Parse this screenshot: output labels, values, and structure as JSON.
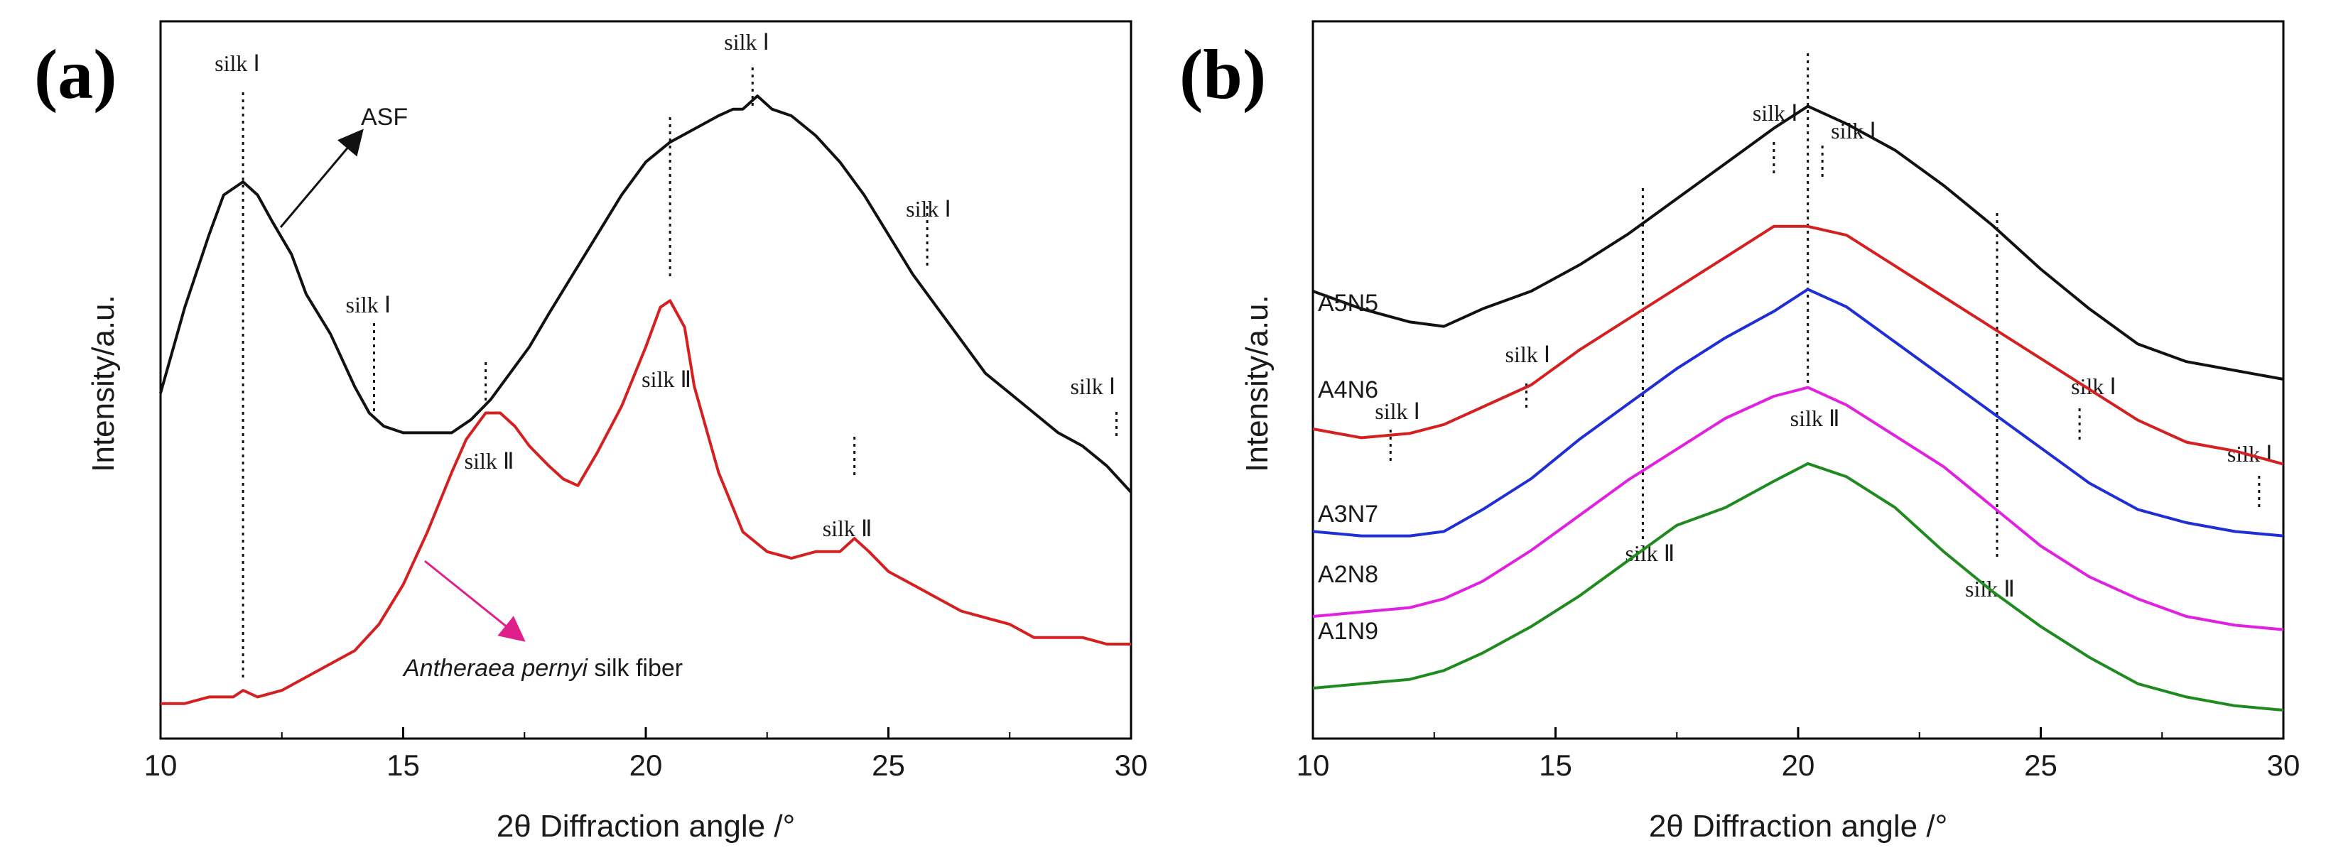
{
  "chart_data": [
    {
      "panel": "(a)",
      "type": "line",
      "xlabel": "2θ Diffraction angle /°",
      "ylabel": "Intensity/a.u.",
      "xlim": [
        10,
        30
      ],
      "xticks": [
        10,
        15,
        20,
        25,
        30
      ],
      "y_units": "arbitrary",
      "grid": false,
      "series": [
        {
          "name": "ASF",
          "color": "#111111",
          "x": [
            10,
            10.5,
            11,
            11.3,
            11.7,
            12,
            12.3,
            12.7,
            13,
            13.5,
            14,
            14.3,
            14.6,
            15,
            15.5,
            16,
            16.4,
            16.8,
            17.2,
            17.6,
            18,
            18.5,
            19,
            19.5,
            20,
            20.5,
            21,
            21.5,
            21.8,
            22,
            22.3,
            22.6,
            23,
            23.5,
            24,
            24.5,
            25,
            25.5,
            26,
            26.5,
            27,
            27.5,
            28,
            28.5,
            29,
            29.5,
            30
          ],
          "values": [
            0.48,
            0.61,
            0.72,
            0.78,
            0.8,
            0.78,
            0.74,
            0.69,
            0.63,
            0.57,
            0.49,
            0.45,
            0.43,
            0.42,
            0.42,
            0.42,
            0.44,
            0.47,
            0.51,
            0.55,
            0.6,
            0.66,
            0.72,
            0.78,
            0.83,
            0.86,
            0.88,
            0.9,
            0.91,
            0.91,
            0.93,
            0.91,
            0.9,
            0.87,
            0.83,
            0.78,
            0.72,
            0.66,
            0.61,
            0.56,
            0.51,
            0.48,
            0.45,
            0.42,
            0.4,
            0.37,
            0.33
          ]
        },
        {
          "name": "Antheraea pernyi silk fiber",
          "color": "#d42020",
          "x": [
            10,
            10.5,
            11,
            11.5,
            11.7,
            12,
            12.5,
            13,
            13.5,
            14,
            14.5,
            15,
            15.5,
            16,
            16.3,
            16.7,
            17,
            17.3,
            17.6,
            18,
            18.3,
            18.6,
            19,
            19.5,
            20,
            20.3,
            20.5,
            20.8,
            21,
            21.5,
            22,
            22.5,
            23,
            23.5,
            24,
            24.3,
            24.6,
            25,
            25.5,
            26,
            26.5,
            27,
            27.5,
            28,
            28.5,
            29,
            29.5,
            30
          ],
          "values": [
            0.01,
            0.01,
            0.02,
            0.02,
            0.03,
            0.02,
            0.03,
            0.05,
            0.07,
            0.09,
            0.13,
            0.19,
            0.27,
            0.36,
            0.41,
            0.45,
            0.45,
            0.43,
            0.4,
            0.37,
            0.35,
            0.34,
            0.39,
            0.46,
            0.55,
            0.61,
            0.62,
            0.58,
            0.49,
            0.36,
            0.27,
            0.24,
            0.23,
            0.24,
            0.24,
            0.26,
            0.24,
            0.21,
            0.19,
            0.17,
            0.15,
            0.14,
            0.13,
            0.11,
            0.11,
            0.11,
            0.1,
            0.1
          ]
        }
      ],
      "marker_lines": [
        {
          "x": 11.7,
          "label": "silk Ⅰ"
        },
        {
          "x": 14.4,
          "label": "silk Ⅰ"
        },
        {
          "x": 16.7,
          "label": "silk Ⅱ"
        },
        {
          "x": 20.5,
          "label": "silk Ⅱ"
        },
        {
          "x": 22.2,
          "label": "silk Ⅰ"
        },
        {
          "x": 24.3,
          "label": "silk Ⅱ"
        },
        {
          "x": 25.8,
          "label": "silk Ⅰ"
        },
        {
          "x": 29.7,
          "label": "silk Ⅰ"
        }
      ],
      "annotations": [
        "ASF",
        "Antheraea pernyi silk fiber"
      ]
    },
    {
      "panel": "(b)",
      "type": "line",
      "xlabel": "2θ Diffraction angle /°",
      "ylabel": "Intensity/a.u.",
      "xlim": [
        10,
        30
      ],
      "xticks": [
        10,
        15,
        20,
        25,
        30
      ],
      "y_units": "arbitrary",
      "grid": false,
      "x": [
        10,
        11,
        12,
        12.7,
        13.5,
        14.5,
        15.5,
        16.5,
        17.5,
        18.5,
        19.5,
        20.2,
        21,
        22,
        23,
        24,
        25,
        26,
        27,
        28,
        29,
        30
      ],
      "series": [
        {
          "name": "A5N5",
          "color": "#111111",
          "values": [
            0.5,
            0.46,
            0.43,
            0.42,
            0.46,
            0.5,
            0.56,
            0.63,
            0.71,
            0.79,
            0.87,
            0.92,
            0.88,
            0.82,
            0.74,
            0.65,
            0.55,
            0.46,
            0.38,
            0.34,
            0.32,
            0.3
          ]
        },
        {
          "name": "A4N6",
          "color": "#d42020",
          "values": [
            0.3,
            0.28,
            0.29,
            0.31,
            0.35,
            0.4,
            0.48,
            0.55,
            0.62,
            0.69,
            0.76,
            0.76,
            0.74,
            0.67,
            0.6,
            0.53,
            0.46,
            0.39,
            0.32,
            0.27,
            0.25,
            0.22
          ]
        },
        {
          "name": "A3N7",
          "color": "#1f2fd4",
          "values": [
            0.18,
            0.17,
            0.17,
            0.18,
            0.23,
            0.3,
            0.39,
            0.47,
            0.55,
            0.62,
            0.68,
            0.73,
            0.69,
            0.61,
            0.53,
            0.45,
            0.37,
            0.29,
            0.23,
            0.2,
            0.18,
            0.17
          ]
        },
        {
          "name": "A2N8",
          "color": "#e021e0",
          "values": [
            0.1,
            0.11,
            0.12,
            0.14,
            0.18,
            0.25,
            0.33,
            0.41,
            0.48,
            0.55,
            0.6,
            0.62,
            0.58,
            0.51,
            0.44,
            0.35,
            0.26,
            0.19,
            0.14,
            0.1,
            0.08,
            0.07
          ]
        },
        {
          "name": "A1N9",
          "color": "#1f8a1f",
          "values": [
            0.05,
            0.06,
            0.07,
            0.09,
            0.13,
            0.19,
            0.26,
            0.34,
            0.42,
            0.46,
            0.52,
            0.56,
            0.53,
            0.46,
            0.36,
            0.27,
            0.19,
            0.12,
            0.06,
            0.03,
            0.01,
            0.0
          ]
        }
      ],
      "marker_lines": [
        {
          "x": 11.6,
          "label": "silk Ⅰ"
        },
        {
          "x": 14.4,
          "label": "silk Ⅰ"
        },
        {
          "x": 16.8,
          "label": "silk Ⅱ"
        },
        {
          "x": 19.5,
          "label": "silk Ⅰ"
        },
        {
          "x": 20.2,
          "label": "silk Ⅱ"
        },
        {
          "x": 20.5,
          "label": "silk Ⅰ"
        },
        {
          "x": 24.1,
          "label": "silk Ⅱ"
        },
        {
          "x": 25.8,
          "label": "silk Ⅰ"
        },
        {
          "x": 29.5,
          "label": "silk Ⅰ"
        }
      ]
    }
  ]
}
